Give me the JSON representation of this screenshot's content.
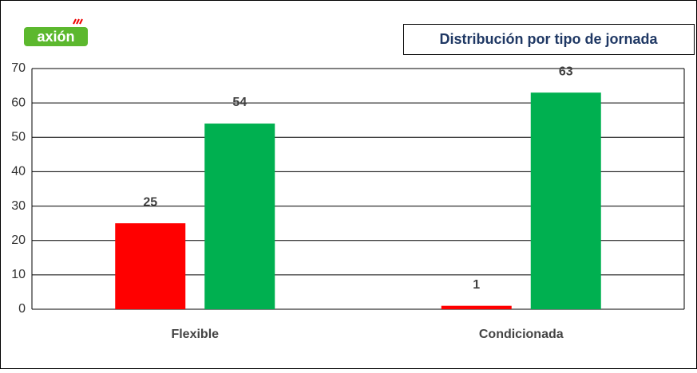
{
  "logo": "axión",
  "chart_data": {
    "type": "bar",
    "title": "Distribución por tipo de jornada",
    "categories": [
      "Flexible",
      "Condicionada"
    ],
    "series": [
      {
        "color": "#ff0000",
        "values": [
          25,
          1
        ]
      },
      {
        "color": "#00b050",
        "values": [
          54,
          63
        ]
      }
    ],
    "ylim": [
      0,
      70
    ],
    "yticks": [
      0,
      10,
      20,
      30,
      40,
      50,
      60,
      70
    ],
    "grid": true
  }
}
